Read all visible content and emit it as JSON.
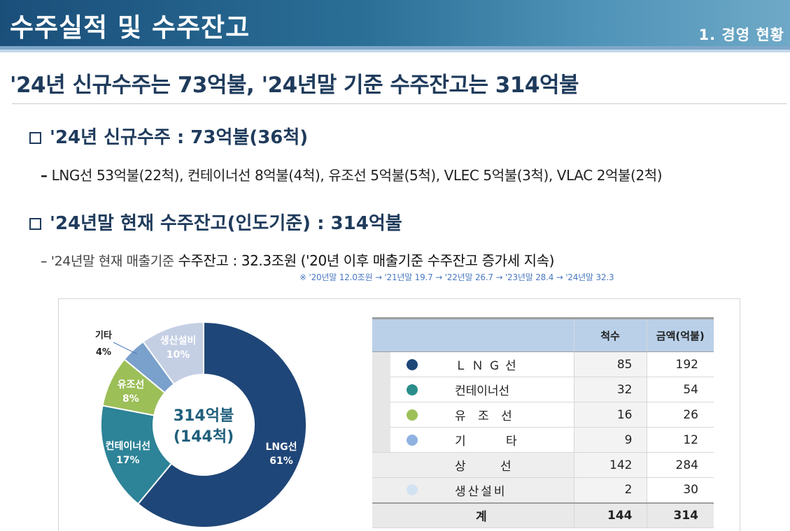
{
  "header": {
    "title": "수주실적 및 수주잔고",
    "section": "1. 경영 현황"
  },
  "headline": "'24년 신규수주는 73억불, '24년말 기준 수주잔고는 314억불",
  "section1": {
    "heading": "'24년 신규수주 : 73억불(36척)",
    "detail": "LNG선 53억불(22척), 컨테이너선 8억불(4척), 유조선 5억불(5척), VLEC 5억불(3척), VLAC 2억불(2척)"
  },
  "section2": {
    "heading": "'24년말 현재 수주잔고(인도기준) : 314억불",
    "detail_prefix": "'24년말 현재 매출기준",
    "detail_main": "수주잔고 : 32.3조원 ('20년 이후 매출기준 수주잔고 증가세 지속)",
    "note": "※ '20년말 12.0조원 → '21년말 19.7 → '22년말 26.7 → '23년말 28.4 → '24년말 32.3"
  },
  "chart_data": {
    "type": "pie",
    "donut": true,
    "center_label_line1": "314억불",
    "center_label_line2": "(144척)",
    "slices": [
      {
        "name": "LNG선",
        "percent": 61,
        "label": "61%",
        "color": "#1f4678"
      },
      {
        "name": "컨테이너선",
        "percent": 17,
        "label": "17%",
        "color": "#2d8397"
      },
      {
        "name": "유조선",
        "percent": 8,
        "label": "8%",
        "color": "#9cbf58"
      },
      {
        "name": "기타",
        "percent": 4,
        "label": "4%",
        "color": "#7aa0cc"
      },
      {
        "name": "생산설비",
        "percent": 10,
        "label": "10%",
        "color": "#c5cfe4"
      }
    ]
  },
  "table": {
    "headers": {
      "count": "척수",
      "amount": "금액(억불)"
    },
    "rows": [
      {
        "name": "LNG선",
        "display": "ＬＮＧ선",
        "count": "85",
        "amount": "192",
        "color": "#1f4678"
      },
      {
        "name": "컨테이너선",
        "display": "컨테이너선",
        "count": "32",
        "amount": "54",
        "color": "#2a8d8a"
      },
      {
        "name": "유조선",
        "display": "유 조 선",
        "count": "16",
        "amount": "26",
        "color": "#9cbf58"
      },
      {
        "name": "기타",
        "display": "기 타",
        "count": "9",
        "amount": "12",
        "color": "#8fb3e0"
      }
    ],
    "subtotal": {
      "name": "상 선",
      "count": "142",
      "amount": "284"
    },
    "facility": {
      "name": "생산설비",
      "count": "2",
      "amount": "30",
      "color": "#d3e2f3"
    },
    "total": {
      "name": "계",
      "count": "144",
      "amount": "314"
    }
  }
}
